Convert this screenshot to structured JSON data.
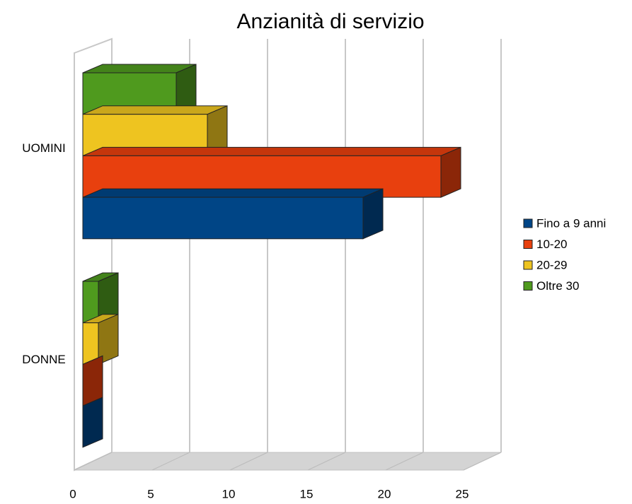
{
  "chart_data": {
    "type": "bar3d_horizontal",
    "title": "Anzianità di servizio",
    "categories": [
      "UOMINI",
      "DONNE"
    ],
    "series": [
      {
        "name": "Fino a 9 anni",
        "color": "#004586",
        "values": [
          18,
          0
        ]
      },
      {
        "name": "10-20",
        "color": "#e8400e",
        "values": [
          23,
          0
        ]
      },
      {
        "name": "20-29",
        "color": "#eec420",
        "values": [
          8,
          1
        ]
      },
      {
        "name": "Oltre 30",
        "color": "#4f9a1e",
        "values": [
          6,
          1
        ]
      }
    ],
    "xlim": [
      0,
      25
    ],
    "xticks": [
      0,
      5,
      10,
      15,
      20,
      25
    ],
    "grid": true,
    "legend": "right"
  }
}
